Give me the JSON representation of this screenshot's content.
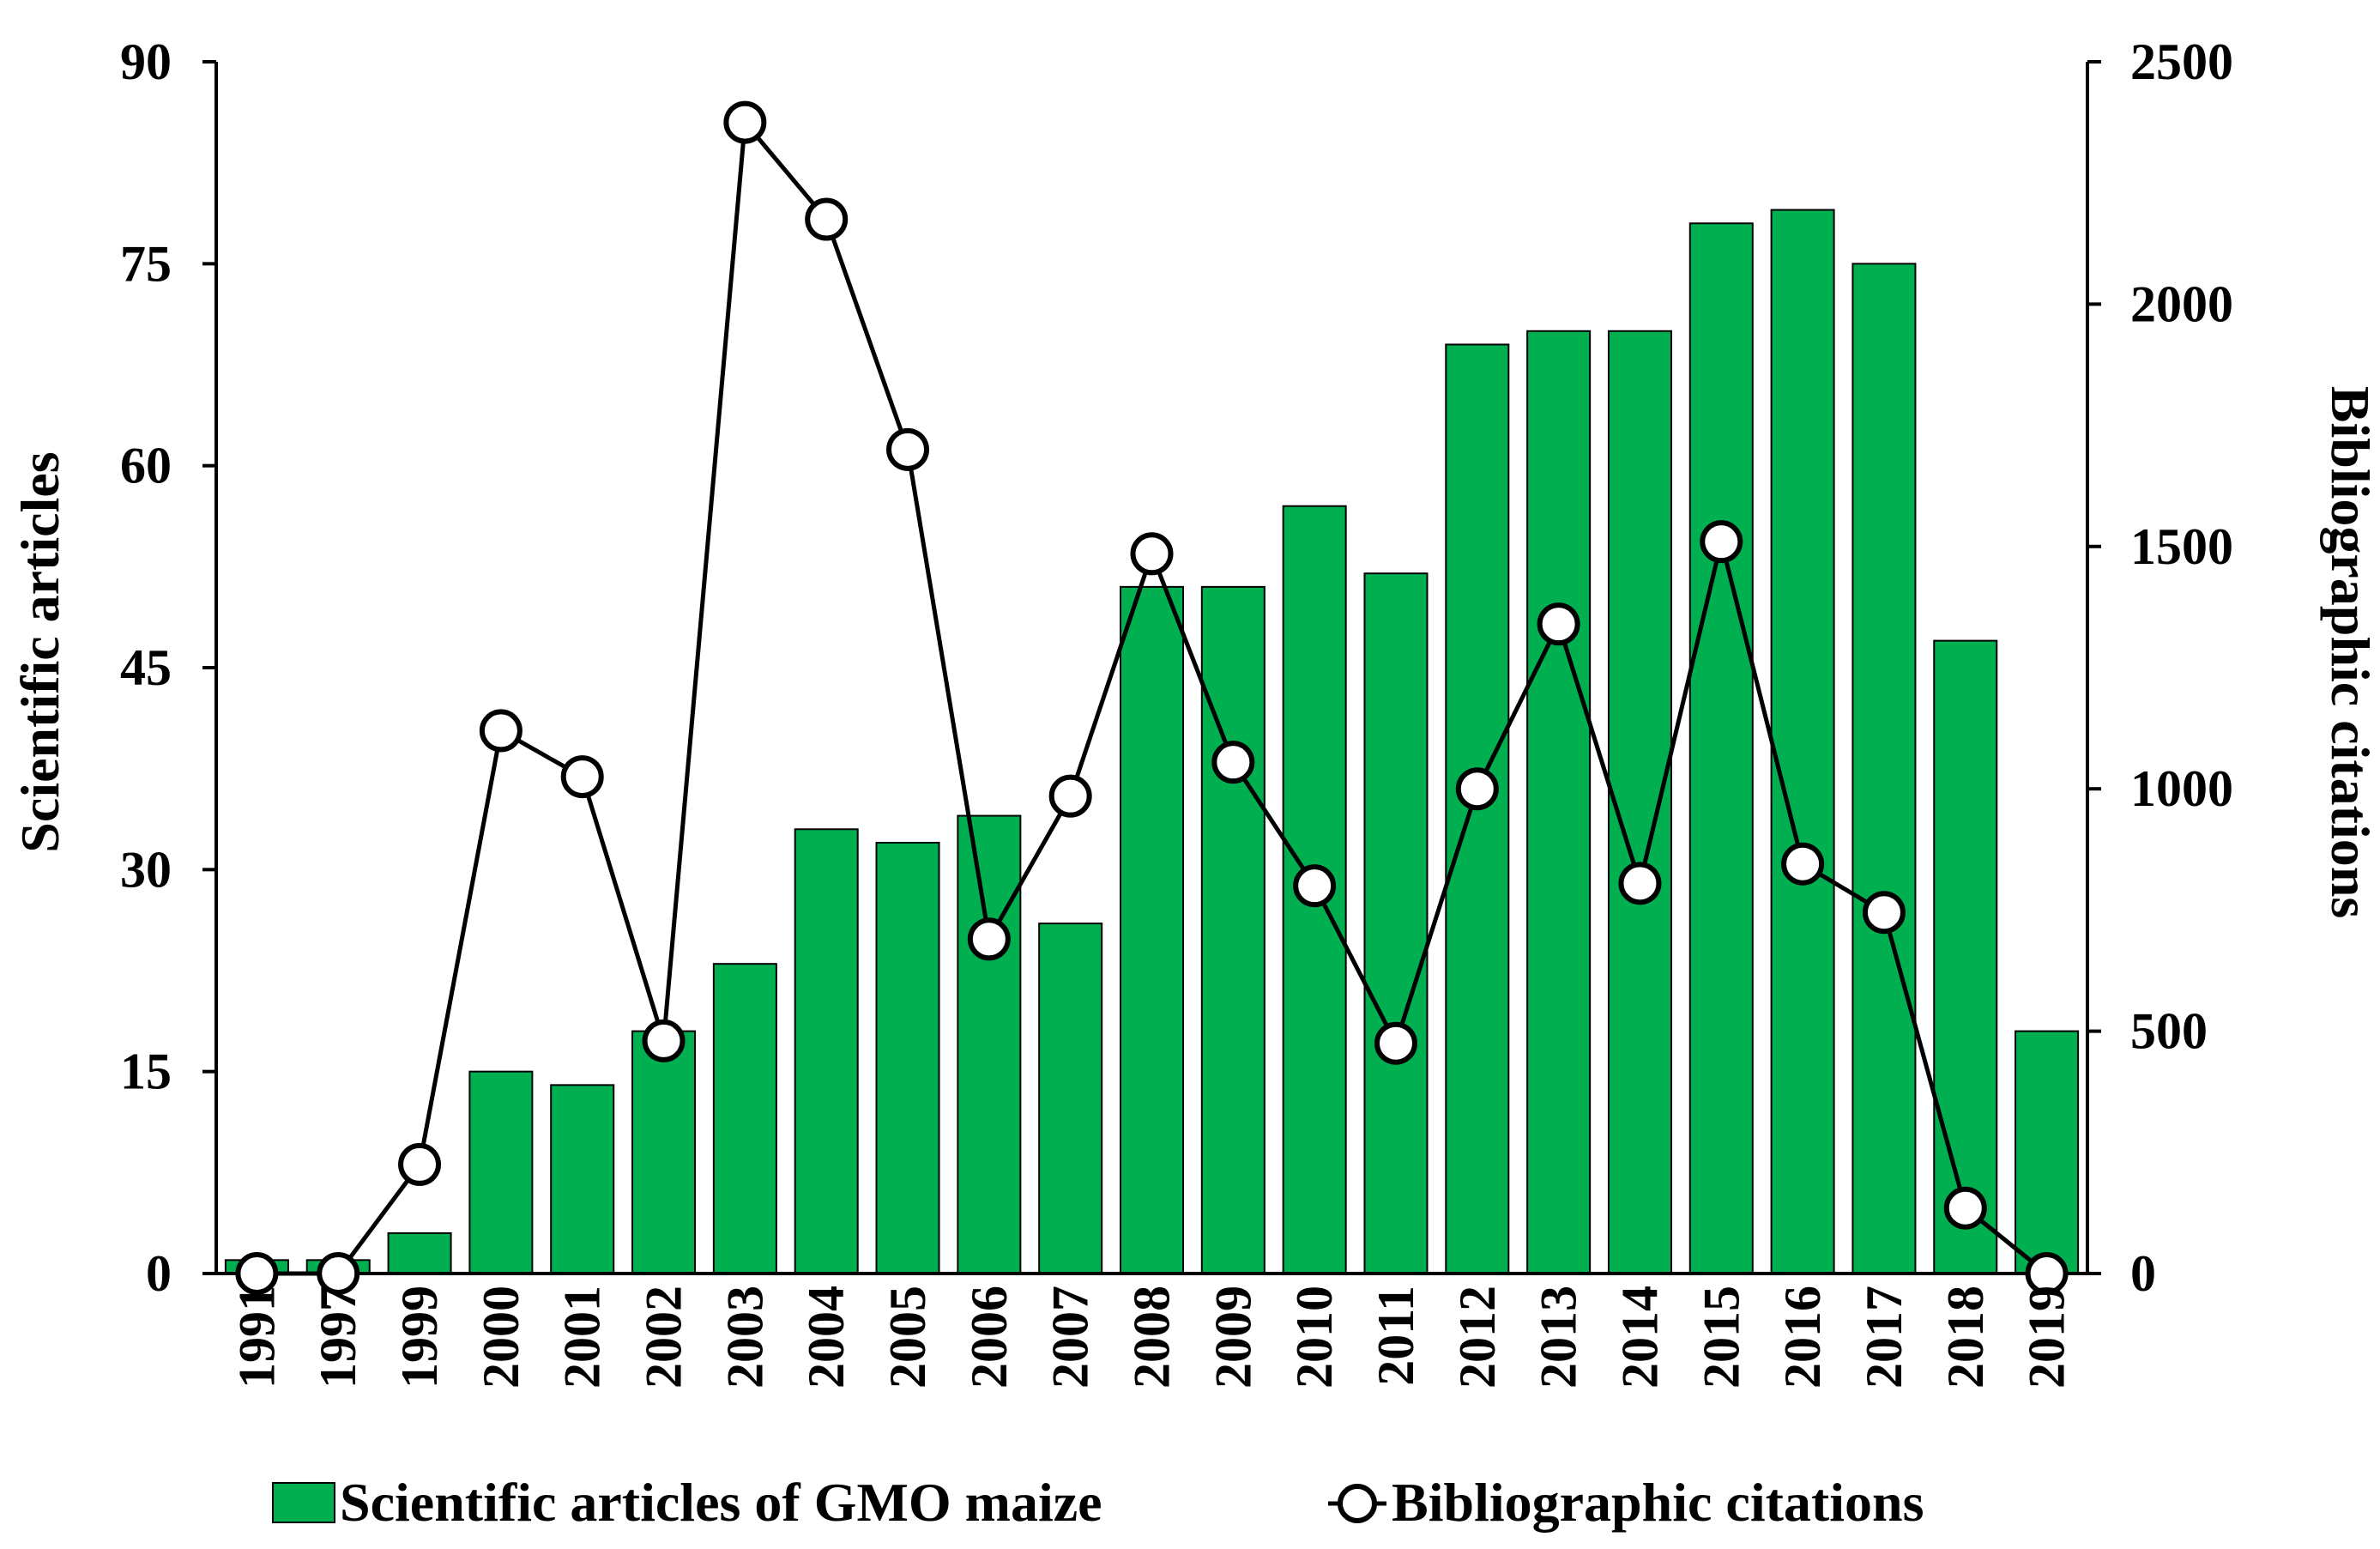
{
  "chart_data": {
    "type": "bar+line",
    "title": "",
    "categories": [
      "1991",
      "1997",
      "1999",
      "2000",
      "2001",
      "2002",
      "2003",
      "2004",
      "2005",
      "2006",
      "2007",
      "2008",
      "2009",
      "2010",
      "2011",
      "2012",
      "2013",
      "2014",
      "2015",
      "2016",
      "2017",
      "2018",
      "2019"
    ],
    "series": [
      {
        "name": "Scientific articles of GMO maize",
        "type": "bar",
        "axis": "left",
        "color": "#00b050",
        "values": [
          1,
          1,
          3,
          15,
          14,
          18,
          23,
          33,
          32,
          34,
          26,
          51,
          51,
          57,
          52,
          69,
          70,
          70,
          78,
          79,
          75,
          47,
          18
        ]
      },
      {
        "name": "Bibliographic citations",
        "type": "line",
        "axis": "right",
        "color": "#000000",
        "marker": "open-circle",
        "values": [
          0,
          0,
          225,
          1120,
          1025,
          480,
          2375,
          2175,
          1700,
          690,
          985,
          1485,
          1055,
          800,
          475,
          1000,
          1340,
          805,
          1510,
          845,
          745,
          135,
          0
        ]
      }
    ],
    "ylabel_left": "Scientific articles",
    "ylabel_right": "Bibliographic citations",
    "ylim_left": [
      0,
      90
    ],
    "ylim_right": [
      0,
      2500
    ],
    "yticks_left": [
      0,
      15,
      30,
      45,
      60,
      75,
      90
    ],
    "yticks_right": [
      0,
      500,
      1000,
      1500,
      2000,
      2500
    ],
    "legend_position": "bottom",
    "grid": false
  }
}
